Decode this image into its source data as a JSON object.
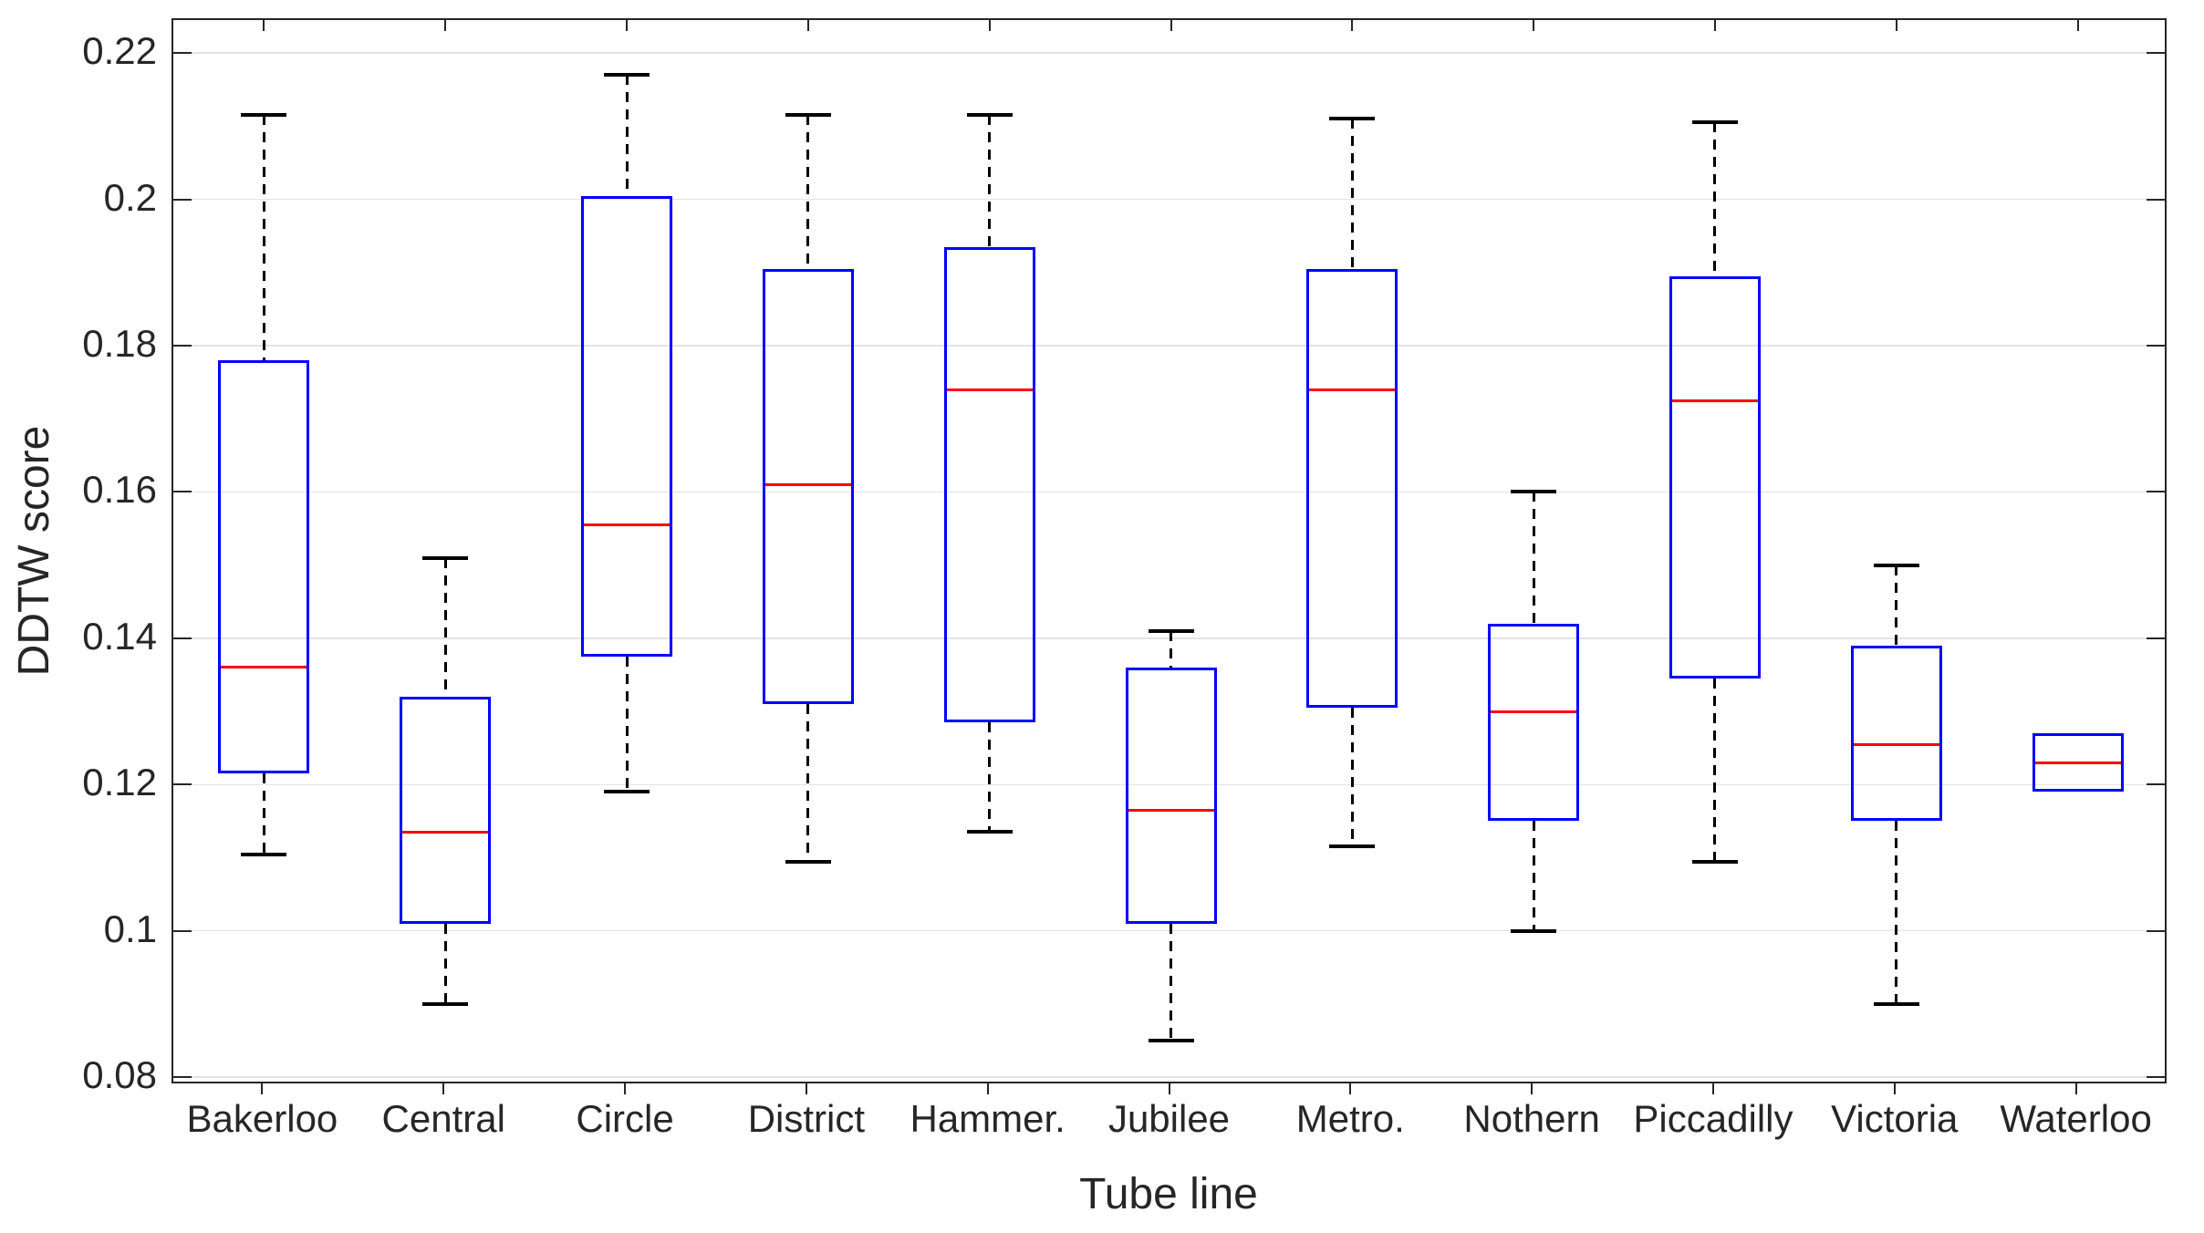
{
  "chart_data": {
    "type": "boxplot",
    "title": "",
    "xlabel": "Tube line",
    "ylabel": "DDTW score",
    "categories": [
      "Bakerloo",
      "Central",
      "Circle",
      "District",
      "Hammer.",
      "Jubilee",
      "Metro.",
      "Nothern",
      "Piccadilly",
      "Victoria",
      "Waterloo"
    ],
    "series": [
      {
        "name": "Bakerloo",
        "whisker_low": 0.1105,
        "q1": 0.1215,
        "median": 0.136,
        "q3": 0.178,
        "whisker_high": 0.2115
      },
      {
        "name": "Central",
        "whisker_low": 0.09,
        "q1": 0.101,
        "median": 0.1135,
        "q3": 0.132,
        "whisker_high": 0.151
      },
      {
        "name": "Circle",
        "whisker_low": 0.119,
        "q1": 0.1375,
        "median": 0.1555,
        "q3": 0.2005,
        "whisker_high": 0.217
      },
      {
        "name": "District",
        "whisker_low": 0.1095,
        "q1": 0.131,
        "median": 0.161,
        "q3": 0.1905,
        "whisker_high": 0.2115
      },
      {
        "name": "Hammer.",
        "whisker_low": 0.1135,
        "q1": 0.1285,
        "median": 0.174,
        "q3": 0.1935,
        "whisker_high": 0.2115
      },
      {
        "name": "Jubilee",
        "whisker_low": 0.085,
        "q1": 0.101,
        "median": 0.1165,
        "q3": 0.136,
        "whisker_high": 0.141
      },
      {
        "name": "Metro.",
        "whisker_low": 0.1115,
        "q1": 0.1305,
        "median": 0.174,
        "q3": 0.1905,
        "whisker_high": 0.211
      },
      {
        "name": "Nothern",
        "whisker_low": 0.1,
        "q1": 0.115,
        "median": 0.13,
        "q3": 0.142,
        "whisker_high": 0.16
      },
      {
        "name": "Piccadilly",
        "whisker_low": 0.1095,
        "q1": 0.1345,
        "median": 0.1725,
        "q3": 0.1895,
        "whisker_high": 0.2105
      },
      {
        "name": "Victoria",
        "whisker_low": 0.09,
        "q1": 0.115,
        "median": 0.1255,
        "q3": 0.139,
        "whisker_high": 0.15
      },
      {
        "name": "Waterloo",
        "whisker_low": 0.119,
        "q1": 0.119,
        "median": 0.123,
        "q3": 0.127,
        "whisker_high": 0.127
      }
    ],
    "yticks": [
      {
        "value": 0.08,
        "label": "0.08"
      },
      {
        "value": 0.1,
        "label": "0.1"
      },
      {
        "value": 0.12,
        "label": "0.12"
      },
      {
        "value": 0.14,
        "label": "0.14"
      },
      {
        "value": 0.16,
        "label": "0.16"
      },
      {
        "value": 0.18,
        "label": "0.18"
      },
      {
        "value": 0.2,
        "label": "0.2"
      },
      {
        "value": 0.22,
        "label": "0.22"
      }
    ],
    "ylim": [
      0.0789,
      0.2245
    ],
    "grid": true,
    "legend": null,
    "colors": {
      "box": "#0000ff",
      "median": "#ff0000",
      "whisker": "#000000",
      "grid": "#e3e3e3",
      "axis": "#262626",
      "background": "#ffffff"
    }
  }
}
